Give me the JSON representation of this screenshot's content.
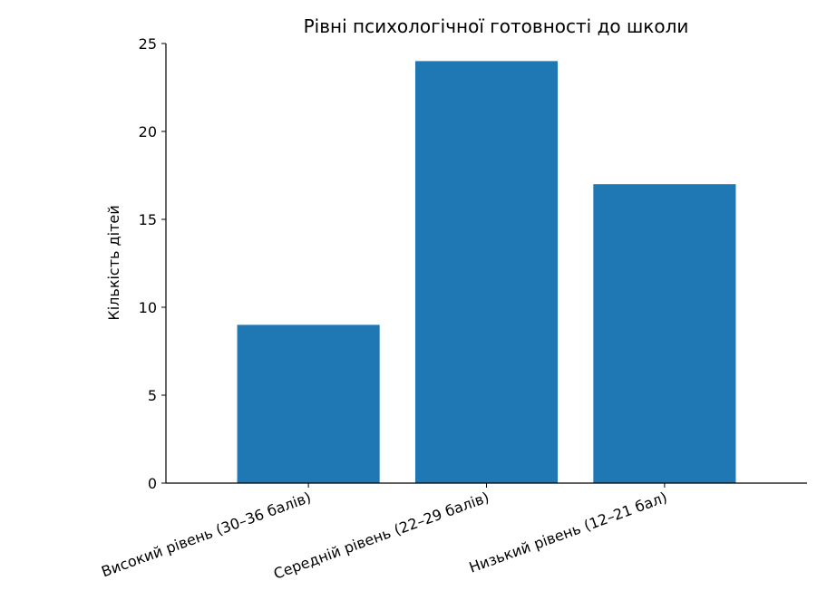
{
  "chart_data": {
    "type": "bar",
    "title": "Рівні психологічної готовності до школи",
    "xlabel": "",
    "ylabel": "Кількість дітей",
    "categories": [
      "Високий рівень (30–36 балів)",
      "Середній рівень (22–29 балів)",
      "Низький рівень (12–21 бал)"
    ],
    "values": [
      9,
      24,
      17
    ],
    "ylim": [
      0,
      25
    ],
    "yticks": [
      0,
      5,
      10,
      15,
      20,
      25
    ],
    "grid": false,
    "legend": "none",
    "colors": {
      "bar": "#1f77b4",
      "axis": "#000000",
      "background": "#ffffff"
    }
  }
}
